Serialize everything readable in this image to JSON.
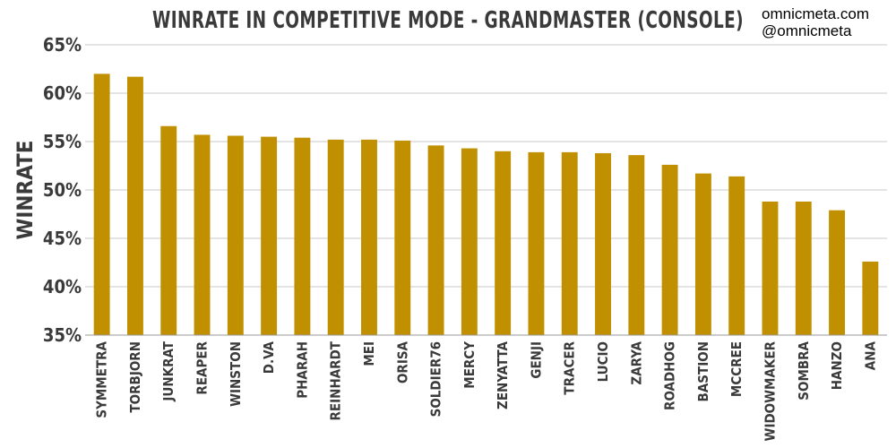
{
  "chart_data": {
    "type": "bar",
    "title": "WINRATE IN COMPETITIVE MODE - GRANDMASTER (CONSOLE)",
    "ylabel": "WINRATE",
    "xlabel": "",
    "ylim": [
      35,
      65
    ],
    "yticks": [
      35,
      40,
      45,
      50,
      55,
      60,
      65
    ],
    "ytick_labels": [
      "35%",
      "40%",
      "45%",
      "50%",
      "55%",
      "60%",
      "65%"
    ],
    "grid": true,
    "bar_color": "#c09000",
    "categories": [
      "SYMMETRA",
      "TORBJORN",
      "JUNKRAT",
      "REAPER",
      "WINSTON",
      "D.VA",
      "PHARAH",
      "REINHARDT",
      "MEI",
      "ORISA",
      "SOLDIER76",
      "MERCY",
      "ZENYATTA",
      "GENJI",
      "TRACER",
      "LUCIO",
      "ZARYA",
      "ROADHOG",
      "BASTION",
      "MCCREE",
      "WIDOWMAKER",
      "SOMBRA",
      "HANZO",
      "ANA"
    ],
    "values": [
      62.0,
      61.7,
      56.6,
      55.7,
      55.6,
      55.5,
      55.4,
      55.2,
      55.2,
      55.1,
      54.6,
      54.3,
      54.0,
      53.9,
      53.9,
      53.8,
      53.6,
      52.6,
      51.7,
      51.4,
      48.8,
      48.8,
      47.9,
      42.6
    ]
  },
  "credits": {
    "site": "omnicmeta.com",
    "handle": "@omnicmeta"
  }
}
